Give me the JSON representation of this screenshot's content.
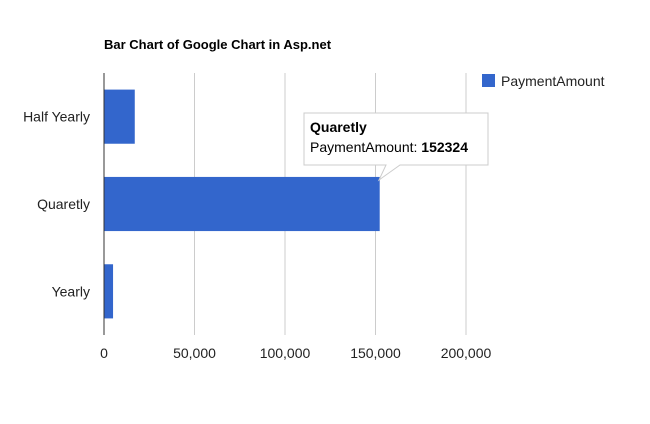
{
  "chart_data": {
    "type": "bar",
    "orientation": "horizontal",
    "title": "Bar Chart of Google Chart in Asp.net",
    "xlabel": "",
    "ylabel": "",
    "categories": [
      "Half Yearly",
      "Quaretly",
      "Yearly"
    ],
    "series": [
      {
        "name": "PaymentAmount",
        "values": [
          17000,
          152324,
          5000
        ],
        "color": "#3366cc"
      }
    ],
    "xlim": [
      0,
      200000
    ],
    "x_ticks": [
      0,
      50000,
      100000,
      150000,
      200000
    ],
    "x_tick_labels": [
      "0",
      "50,000",
      "100,000",
      "150,000",
      "200,000"
    ],
    "grid": true,
    "legend": {
      "placement": "right",
      "entries": [
        "PaymentAmount"
      ]
    },
    "tooltip": {
      "title": "Quaretly",
      "label": "PaymentAmount:",
      "value": "152324",
      "target_category": "Quaretly"
    }
  }
}
